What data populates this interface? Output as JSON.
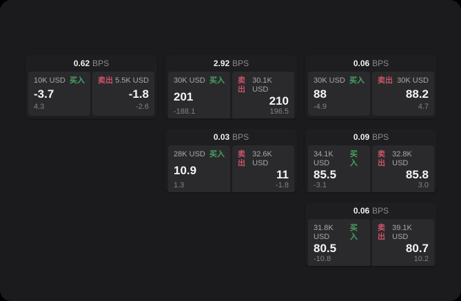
{
  "labels": {
    "bps_unit": "BPS",
    "buy": "买入",
    "sell": "卖出"
  },
  "colors": {
    "buy": "#48a362",
    "sell": "#c95468",
    "page_bg": "#1b1b1d",
    "card_bg": "#1e1e20",
    "panel_bg": "#2a2a2c"
  },
  "cards": [
    {
      "bps": "0.62",
      "buy": {
        "size": "10K USD",
        "value": "-3.7",
        "sub": "4.3"
      },
      "sell": {
        "size": "5.5K USD",
        "value": "-1.8",
        "sub": "-2.6"
      }
    },
    {
      "bps": "2.92",
      "buy": {
        "size": "30K USD",
        "value": "201",
        "sub": "-188.1"
      },
      "sell": {
        "size": "30.1K USD",
        "value": "210",
        "sub": "196.5"
      }
    },
    {
      "bps": "0.06",
      "buy": {
        "size": "30K USD",
        "value": "88",
        "sub": "-4.9"
      },
      "sell": {
        "size": "30K USD",
        "value": "88.2",
        "sub": "4.7"
      }
    },
    {
      "bps": "0.03",
      "buy": {
        "size": "28K USD",
        "value": "10.9",
        "sub": "1.3"
      },
      "sell": {
        "size": "32.6K USD",
        "value": "11",
        "sub": "-1.8"
      }
    },
    {
      "bps": "0.09",
      "buy": {
        "size": "34.1K USD",
        "value": "85.5",
        "sub": "-3.1"
      },
      "sell": {
        "size": "32.8K USD",
        "value": "85.8",
        "sub": "3.0"
      }
    },
    {
      "bps": "0.06",
      "buy": {
        "size": "31.8K USD",
        "value": "80.5",
        "sub": "-10.8"
      },
      "sell": {
        "size": "39.1K USD",
        "value": "80.7",
        "sub": "10.2"
      }
    }
  ]
}
